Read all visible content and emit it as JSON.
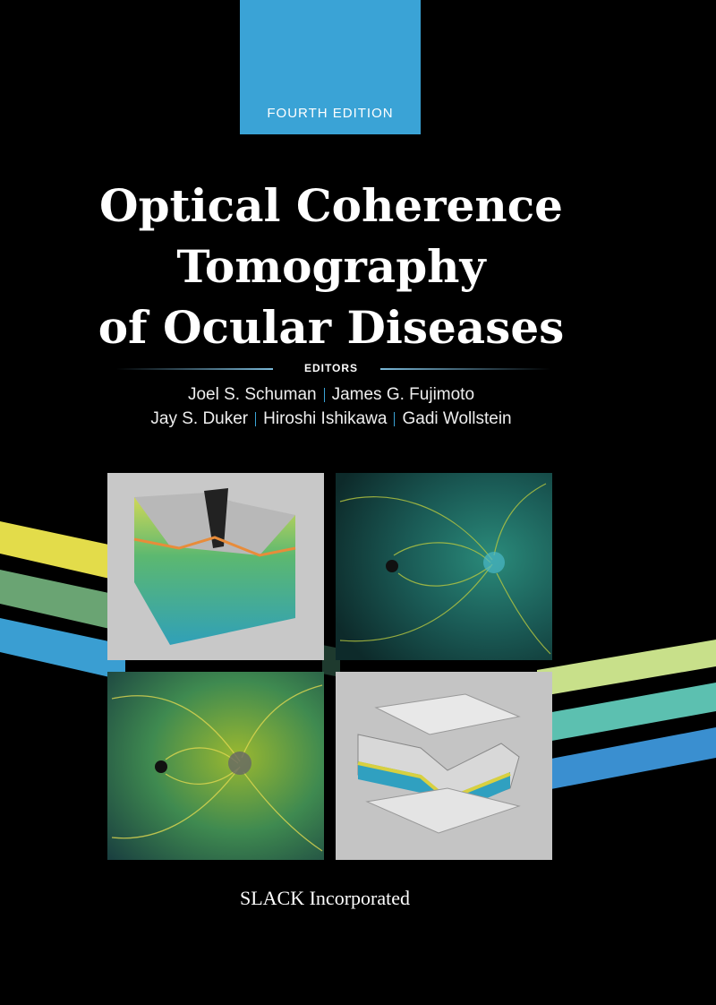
{
  "cover": {
    "edition": "FOURTH EDITION",
    "title_lines": [
      "Optical Coherence",
      "Tomography",
      "of Ocular Diseases"
    ],
    "editors_label": "EDITORS",
    "editor_lines": [
      [
        "Joel S. Schuman",
        "James G. Fujimoto"
      ],
      [
        "Jay S. Duker",
        "Hiroshi Ishikawa",
        "Gadi Wollstein"
      ]
    ],
    "publisher": "SLACK Incorporated"
  }
}
